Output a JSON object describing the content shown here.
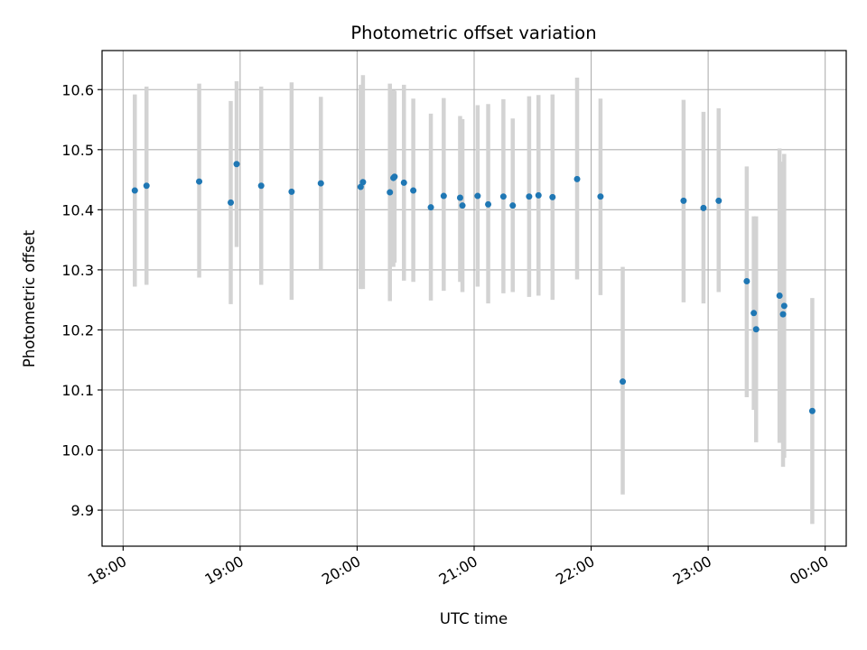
{
  "chart_data": {
    "type": "scatter",
    "title": "Photometric offset variation",
    "xlabel": "UTC time",
    "ylabel": "Photometric offset",
    "x_ticks": [
      "18:00",
      "19:00",
      "20:00",
      "21:00",
      "22:00",
      "23:00",
      "00:00"
    ],
    "y_ticks": [
      "9.9",
      "10.0",
      "10.1",
      "10.2",
      "10.3",
      "10.4",
      "10.5",
      "10.6"
    ],
    "xlim": [
      -0.18,
      6.18
    ],
    "ylim": [
      9.84,
      10.665
    ],
    "grid": true,
    "colors": {
      "point": "#1f77b4",
      "errorbar": "#d3d3d3",
      "grid": "#b0b0b0"
    },
    "series": [
      {
        "x_hours_after_1800": [
          0.1,
          0.2,
          0.65,
          0.92,
          0.97,
          1.18,
          1.44,
          1.69,
          2.03,
          2.05,
          2.28,
          2.31,
          2.32,
          2.4,
          2.48,
          2.63,
          2.74,
          2.88,
          2.9,
          3.03,
          3.12,
          3.25,
          3.33,
          3.47,
          3.55,
          3.67,
          3.88,
          4.08,
          4.27,
          4.79,
          4.96,
          5.09,
          5.33,
          5.39,
          5.41,
          5.61,
          5.64,
          5.65,
          5.89
        ],
        "y": [
          10.432,
          10.44,
          10.447,
          10.412,
          10.476,
          10.44,
          10.43,
          10.444,
          10.438,
          10.446,
          10.429,
          10.453,
          10.455,
          10.445,
          10.432,
          10.404,
          10.423,
          10.42,
          10.407,
          10.423,
          10.409,
          10.422,
          10.407,
          10.422,
          10.424,
          10.421,
          10.451,
          10.422,
          10.114,
          10.415,
          10.403,
          10.415,
          10.281,
          10.228,
          10.201,
          10.257,
          10.226,
          10.24,
          10.065
        ],
        "yerr_low": [
          10.272,
          10.275,
          10.287,
          10.243,
          10.338,
          10.275,
          10.25,
          10.3,
          10.268,
          10.268,
          10.248,
          10.305,
          10.312,
          10.282,
          10.28,
          10.249,
          10.265,
          10.28,
          10.263,
          10.272,
          10.244,
          10.261,
          10.263,
          10.255,
          10.257,
          10.25,
          10.284,
          10.258,
          9.926,
          10.246,
          10.244,
          10.263,
          10.088,
          10.067,
          10.013,
          10.012,
          9.972,
          9.987,
          9.877
        ],
        "yerr_high": [
          10.592,
          10.605,
          10.61,
          10.581,
          10.614,
          10.605,
          10.612,
          10.588,
          10.608,
          10.624,
          10.61,
          10.599,
          10.598,
          10.608,
          10.585,
          10.56,
          10.586,
          10.556,
          10.551,
          10.574,
          10.576,
          10.584,
          10.552,
          10.589,
          10.591,
          10.592,
          10.62,
          10.585,
          10.305,
          10.583,
          10.563,
          10.569,
          10.472,
          10.389,
          10.389,
          10.502,
          10.48,
          10.493,
          10.253
        ]
      }
    ]
  }
}
